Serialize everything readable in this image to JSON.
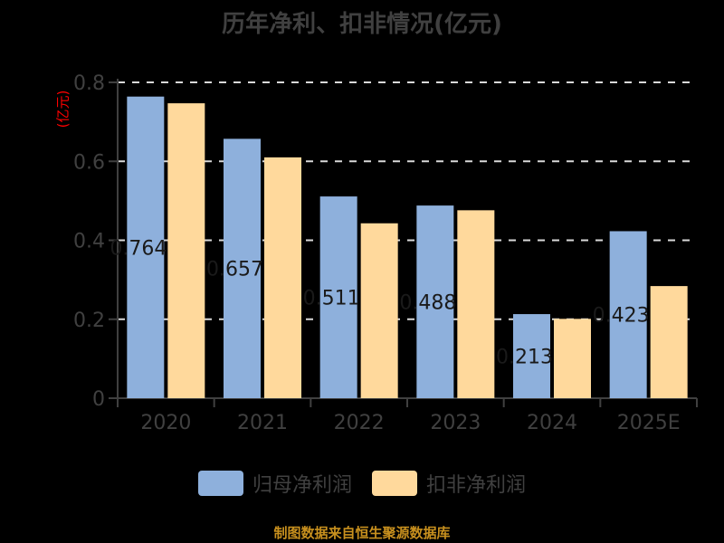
{
  "title": "历年净利、扣非情况(亿元)",
  "unit_label": "(亿元)",
  "source": "制图数据来自恒生聚源数据库",
  "colors": {
    "background": "#000000",
    "series_1": "#8eb0dc",
    "series_2": "#ffd99c",
    "axis": "#404040",
    "grid": "#d9d9d9",
    "unit": "#ff0000",
    "source": "#c8901e"
  },
  "legend": [
    {
      "name": "归母净利润",
      "color": "#8eb0dc"
    },
    {
      "name": "扣非净利润",
      "color": "#ffd99c"
    }
  ],
  "chart_data": {
    "type": "bar",
    "title": "历年净利、扣非情况(亿元)",
    "xlabel": "",
    "ylabel": "(亿元)",
    "ylim": [
      0,
      0.8
    ],
    "yticks": [
      0,
      0.2,
      0.4,
      0.6,
      0.8
    ],
    "ytick_labels": [
      "0",
      "0.2",
      "0.4",
      "0.6",
      "0.8"
    ],
    "grid": "horizontal dashed",
    "legend_position": "bottom",
    "categories": [
      "2020",
      "2021",
      "2022",
      "2023",
      "2024",
      "2025E"
    ],
    "series": [
      {
        "name": "归母净利润",
        "values": [
          0.764,
          0.657,
          0.511,
          0.488,
          0.213,
          0.423
        ],
        "data_labels": [
          "0.764",
          "0.657",
          "0.511",
          "0.488",
          "0.213",
          "0.423"
        ]
      },
      {
        "name": "扣非净利润",
        "values": [
          0.747,
          0.61,
          0.443,
          0.476,
          0.201,
          0.284
        ]
      }
    ]
  }
}
